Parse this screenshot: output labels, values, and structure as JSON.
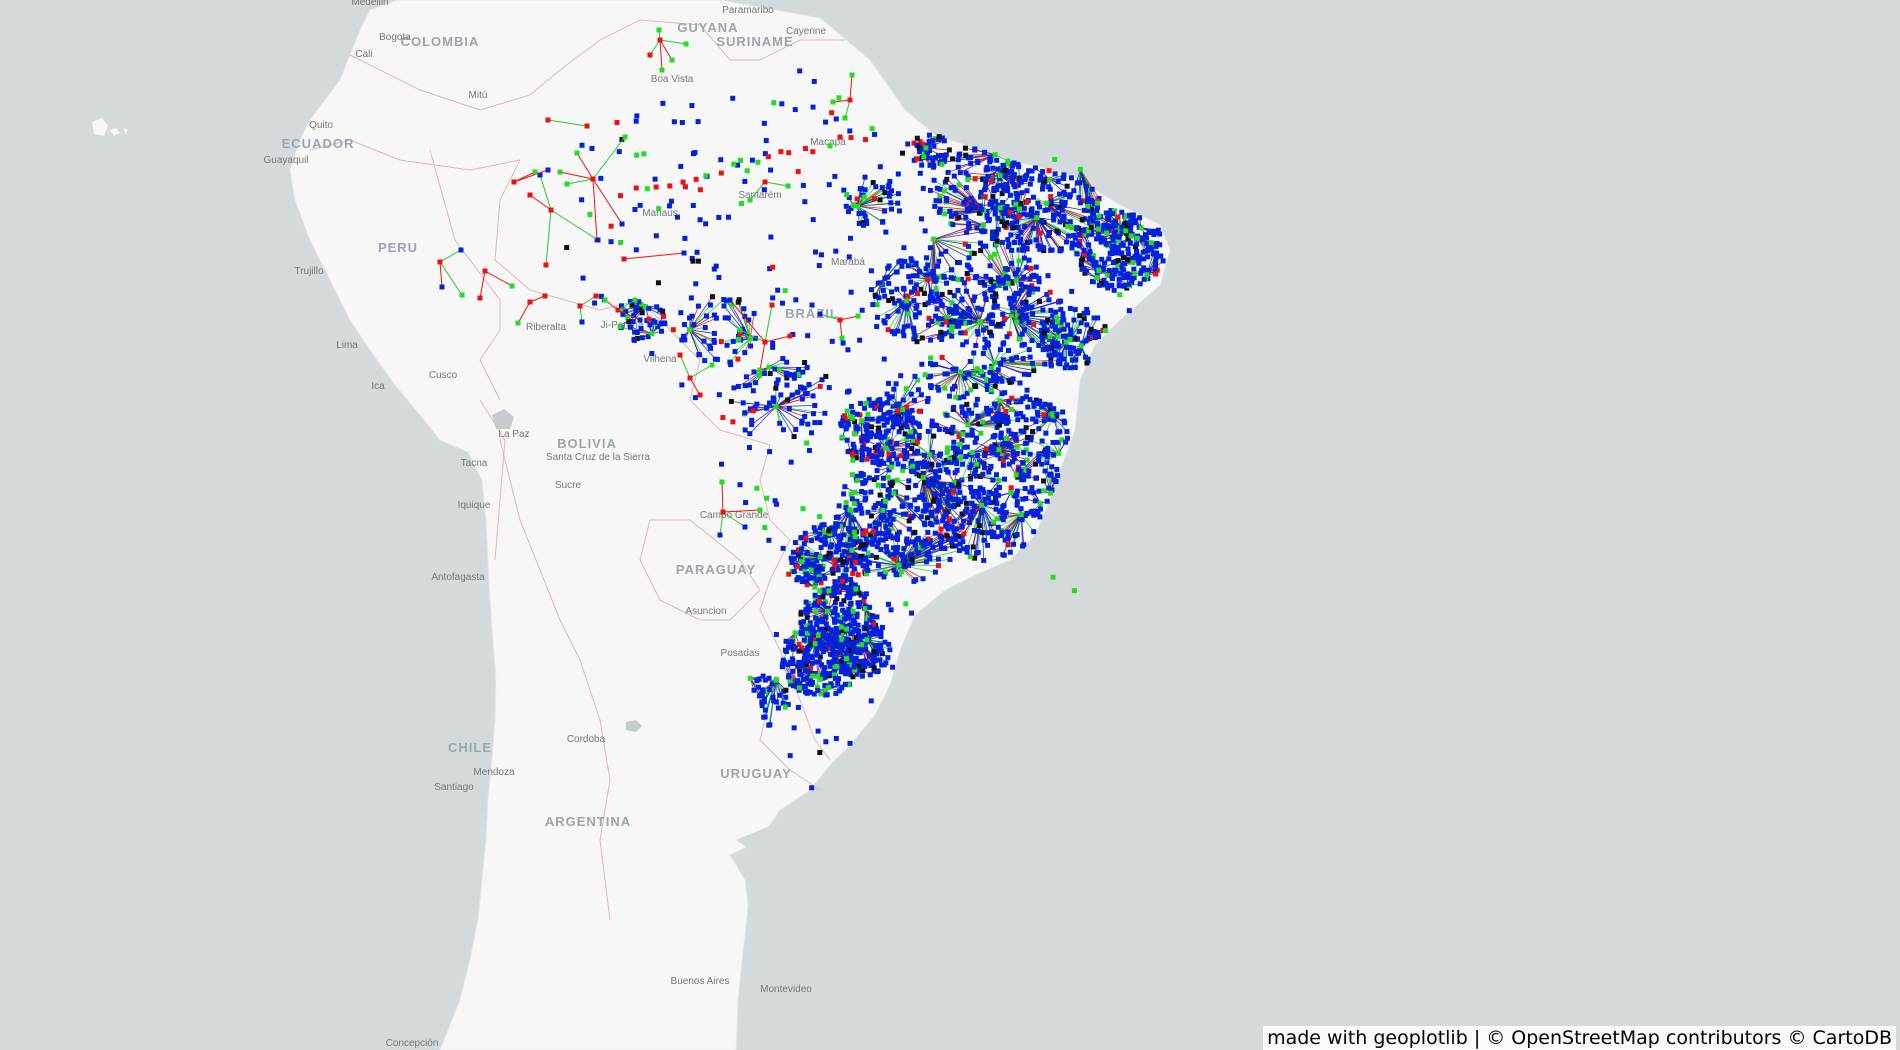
{
  "attribution": "made with geoplotlib | © OpenStreetMap contributors © CartoDB",
  "colors": {
    "ocean": "#d4dadc",
    "land": "#f7f7f7",
    "border": "#e0b9b9",
    "blue_node": "#0022dd",
    "green_node": "#22dd22",
    "red_node": "#ee1111",
    "black_node": "#111111"
  },
  "country_labels": [
    "COLOMBIA",
    "GUYANA",
    "SURINAME",
    "ECUADOR",
    "PERU",
    "BRAZIL",
    "BOLIVIA",
    "PARAGUAY",
    "CHILE",
    "ARGENTINA",
    "URUGUAY"
  ],
  "city_labels": [
    "Medellin",
    "Bogota",
    "Cali",
    "Paramaribo",
    "Cayenne",
    "Quito",
    "Guayaquil",
    "Mitú",
    "Boa Vista",
    "Macapá",
    "Santarém",
    "Manaus",
    "Marabá",
    "Trujillo",
    "Lima",
    "Cusco",
    "Ica",
    "Riberalta",
    "Ji-Paraná",
    "Vilhena",
    "La Paz",
    "Tacna",
    "Santa Cruz de la Sierra",
    "Sucre",
    "Iquique",
    "Antofagasta",
    "Campo Grande",
    "Asuncion",
    "Posadas",
    "Cordoba",
    "Mendoza",
    "Santiago",
    "Concepción",
    "Buenos Aires",
    "Montevideo"
  ]
}
